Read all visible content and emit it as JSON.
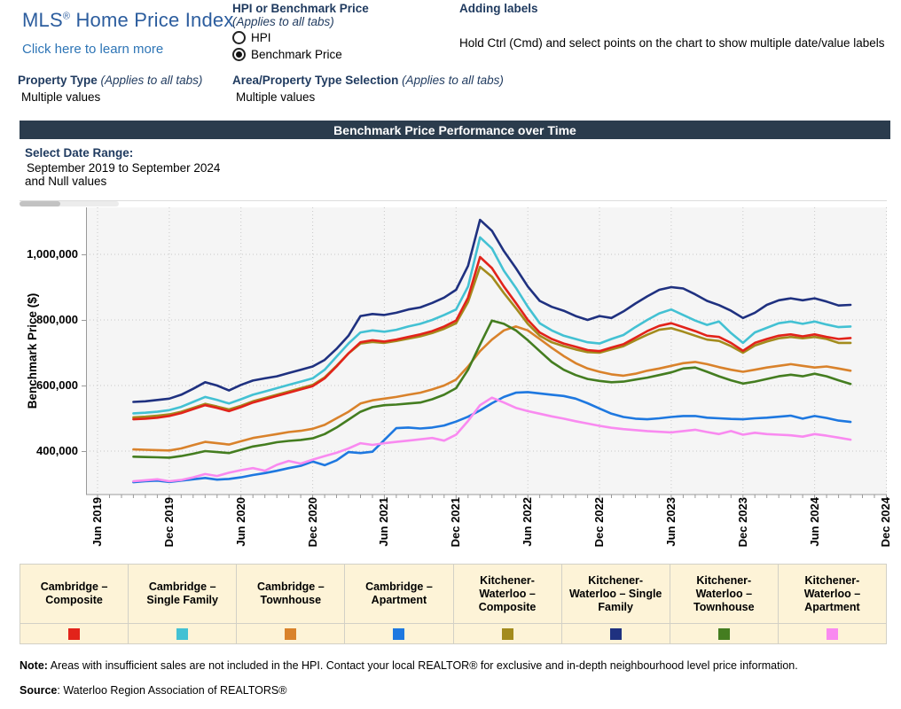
{
  "header": {
    "title_mls": "MLS",
    "title_reg": "®",
    "title_rest": " Home Price Index",
    "link": "Click here to learn more",
    "hpi_control": {
      "label": "HPI or Benchmark Price",
      "sublabel": "(Applies to all tabs)",
      "options": [
        {
          "label": "HPI",
          "selected": false
        },
        {
          "label": "Benchmark Price",
          "selected": true
        }
      ]
    },
    "adding_labels": {
      "label": "Adding labels",
      "text": "Hold Ctrl (Cmd) and select points on the chart to show multiple date/value labels"
    },
    "property_type": {
      "label": "Property Type",
      "sublabel": " (Applies to all tabs)",
      "value": "Multiple values"
    },
    "area_selection": {
      "label": "Area/Property Type Selection",
      "sublabel": " (Applies to all tabs)",
      "value": "Multiple values"
    }
  },
  "chart_title": "Benchmark Price Performance over Time",
  "date_range": {
    "label": "Select Date Range:",
    "value": "September 2019 to September 2024",
    "extra": "and Null values"
  },
  "colors": {
    "title_blue": "#2c5d9e",
    "link_blue": "#2e75b6",
    "label_navy": "#1f3a5f",
    "titlebar_bg": "#2b3c4d",
    "plot_bg": "#f5f5f5",
    "grid": "#c8c8c8",
    "axis": "#9a9a9a",
    "legend_bg": "#fdf3d7"
  },
  "chart_data": {
    "type": "line",
    "title": "Benchmark Price Performance over Time",
    "ylabel": "Benchmark Price ($)",
    "yticks": [
      400000,
      600000,
      800000,
      1000000
    ],
    "ytick_labels": [
      "400,000",
      "600,000",
      "800,000",
      "1,000,000"
    ],
    "ylim": [
      267000,
      1143000
    ],
    "grid": true,
    "legend_position": "bottom-table",
    "x_first_point": "Sep 2019",
    "x_last_point": "Sep 2024",
    "x_interval": "monthly",
    "xtick_labels": [
      "Jun 2019",
      "Dec 2019",
      "Jun 2020",
      "Dec 2020",
      "Jun 2021",
      "Dec 2021",
      "Jun 2022",
      "Dec 2022",
      "Jun 2023",
      "Dec 2023",
      "Jun 2024",
      "Dec 2024"
    ],
    "draw_order": [
      2,
      6,
      4,
      1,
      0,
      5,
      3,
      7
    ],
    "series": [
      {
        "name": "Cambridge – Composite",
        "color": "#e2231a",
        "values": [
          497000,
          499000,
          502000,
          507000,
          516000,
          528000,
          540000,
          532000,
          522000,
          534000,
          548000,
          558000,
          568000,
          578000,
          588000,
          598000,
          622000,
          658000,
          698000,
          732000,
          738000,
          734000,
          740000,
          748000,
          756000,
          766000,
          780000,
          798000,
          868000,
          992000,
          958000,
          902000,
          852000,
          800000,
          762000,
          742000,
          728000,
          718000,
          708000,
          705000,
          716000,
          726000,
          746000,
          766000,
          782000,
          790000,
          778000,
          766000,
          752000,
          748000,
          730000,
          706000,
          730000,
          742000,
          752000,
          756000,
          750000,
          756000,
          748000,
          742000,
          745000
        ]
      },
      {
        "name": "Cambridge – Single Family",
        "color": "#43c1d3",
        "values": [
          515000,
          517000,
          520000,
          525000,
          535000,
          550000,
          565000,
          556000,
          545000,
          558000,
          572000,
          582000,
          592000,
          602000,
          612000,
          622000,
          648000,
          688000,
          728000,
          762000,
          768000,
          764000,
          770000,
          780000,
          788000,
          800000,
          815000,
          832000,
          902000,
          1052000,
          1018000,
          950000,
          898000,
          840000,
          790000,
          768000,
          752000,
          742000,
          732000,
          728000,
          742000,
          754000,
          778000,
          800000,
          820000,
          832000,
          815000,
          798000,
          785000,
          795000,
          760000,
          730000,
          762000,
          776000,
          790000,
          795000,
          788000,
          795000,
          786000,
          778000,
          780000
        ]
      },
      {
        "name": "Cambridge – Townhouse",
        "color": "#d9822b",
        "values": [
          405000,
          404000,
          403000,
          402000,
          408000,
          418000,
          428000,
          424000,
          420000,
          430000,
          440000,
          446000,
          452000,
          458000,
          462000,
          468000,
          480000,
          500000,
          520000,
          545000,
          555000,
          560000,
          565000,
          572000,
          578000,
          588000,
          600000,
          618000,
          658000,
          705000,
          740000,
          768000,
          780000,
          768000,
          742000,
          715000,
          690000,
          668000,
          652000,
          642000,
          634000,
          630000,
          636000,
          645000,
          652000,
          660000,
          668000,
          672000,
          665000,
          656000,
          648000,
          642000,
          648000,
          655000,
          660000,
          665000,
          660000,
          655000,
          658000,
          652000,
          645000
        ]
      },
      {
        "name": "Cambridge – Apartment",
        "color": "#1e78e0",
        "values": [
          305000,
          308000,
          310000,
          306000,
          310000,
          314000,
          318000,
          313000,
          315000,
          320000,
          327000,
          333000,
          340000,
          348000,
          355000,
          368000,
          357000,
          372000,
          397000,
          394000,
          398000,
          434000,
          470000,
          472000,
          469000,
          472000,
          478000,
          490000,
          505000,
          524000,
          546000,
          565000,
          578000,
          580000,
          576000,
          572000,
          568000,
          560000,
          546000,
          530000,
          514000,
          504000,
          499000,
          497000,
          500000,
          504000,
          507000,
          507000,
          502000,
          500000,
          498000,
          497000,
          500000,
          502000,
          505000,
          508000,
          499000,
          507000,
          501000,
          493000,
          489000
        ]
      },
      {
        "name": "Kitchener-Waterloo – Composite",
        "color": "#a38b1d",
        "values": [
          503000,
          505000,
          508000,
          512000,
          520000,
          532000,
          544000,
          536000,
          527000,
          538000,
          552000,
          562000,
          572000,
          582000,
          592000,
          602000,
          625000,
          660000,
          698000,
          728000,
          733000,
          730000,
          736000,
          743000,
          750000,
          760000,
          773000,
          790000,
          855000,
          962000,
          932000,
          882000,
          836000,
          788000,
          752000,
          732000,
          720000,
          710000,
          702000,
          700000,
          710000,
          720000,
          738000,
          755000,
          770000,
          775000,
          764000,
          752000,
          740000,
          736000,
          720000,
          700000,
          722000,
          734000,
          744000,
          748000,
          744000,
          748000,
          742000,
          730000,
          730000
        ]
      },
      {
        "name": "Kitchener-Waterloo – Single Family",
        "color": "#1f3180",
        "values": [
          550000,
          552000,
          556000,
          560000,
          572000,
          590000,
          610000,
          600000,
          585000,
          602000,
          615000,
          622000,
          628000,
          638000,
          648000,
          658000,
          678000,
          712000,
          752000,
          812000,
          818000,
          815000,
          822000,
          832000,
          838000,
          852000,
          868000,
          892000,
          965000,
          1105000,
          1072000,
          1010000,
          958000,
          902000,
          858000,
          840000,
          828000,
          812000,
          800000,
          812000,
          806000,
          826000,
          850000,
          872000,
          892000,
          900000,
          896000,
          878000,
          858000,
          845000,
          828000,
          806000,
          822000,
          846000,
          860000,
          866000,
          860000,
          866000,
          856000,
          844000,
          846000
        ]
      },
      {
        "name": "Kitchener-Waterloo – Townhouse",
        "color": "#447d20",
        "values": [
          383000,
          382000,
          381000,
          380000,
          385000,
          392000,
          400000,
          397000,
          394000,
          404000,
          414000,
          420000,
          427000,
          431000,
          434000,
          439000,
          452000,
          472000,
          496000,
          520000,
          534000,
          540000,
          542000,
          545000,
          548000,
          558000,
          572000,
          592000,
          648000,
          725000,
          798000,
          788000,
          768000,
          738000,
          705000,
          672000,
          648000,
          632000,
          620000,
          614000,
          610000,
          612000,
          618000,
          624000,
          632000,
          640000,
          652000,
          655000,
          642000,
          628000,
          616000,
          606000,
          612000,
          620000,
          628000,
          633000,
          628000,
          636000,
          628000,
          616000,
          605000
        ]
      },
      {
        "name": "Kitchener-Waterloo – Apartment",
        "color": "#f98af0",
        "values": [
          308000,
          311000,
          314000,
          308000,
          312000,
          320000,
          330000,
          324000,
          334000,
          342000,
          348000,
          340000,
          358000,
          370000,
          362000,
          374000,
          385000,
          395000,
          408000,
          424000,
          419000,
          424000,
          428000,
          432000,
          436000,
          440000,
          432000,
          450000,
          492000,
          540000,
          563000,
          548000,
          532000,
          522000,
          514000,
          506000,
          499000,
          491000,
          484000,
          477000,
          471000,
          467000,
          464000,
          461000,
          459000,
          457000,
          461000,
          465000,
          458000,
          452000,
          461000,
          450000,
          456000,
          452000,
          450000,
          448000,
          444000,
          452000,
          447000,
          441000,
          435000
        ]
      }
    ]
  },
  "note": {
    "label": "Note:",
    "text": " Areas with insufficient sales are not included in the HPI. Contact your local REALTOR® for exclusive and in-depth neighbourhood level price information."
  },
  "source": {
    "label": "Source",
    "text": ": Waterloo Region Association of REALTORS®"
  }
}
